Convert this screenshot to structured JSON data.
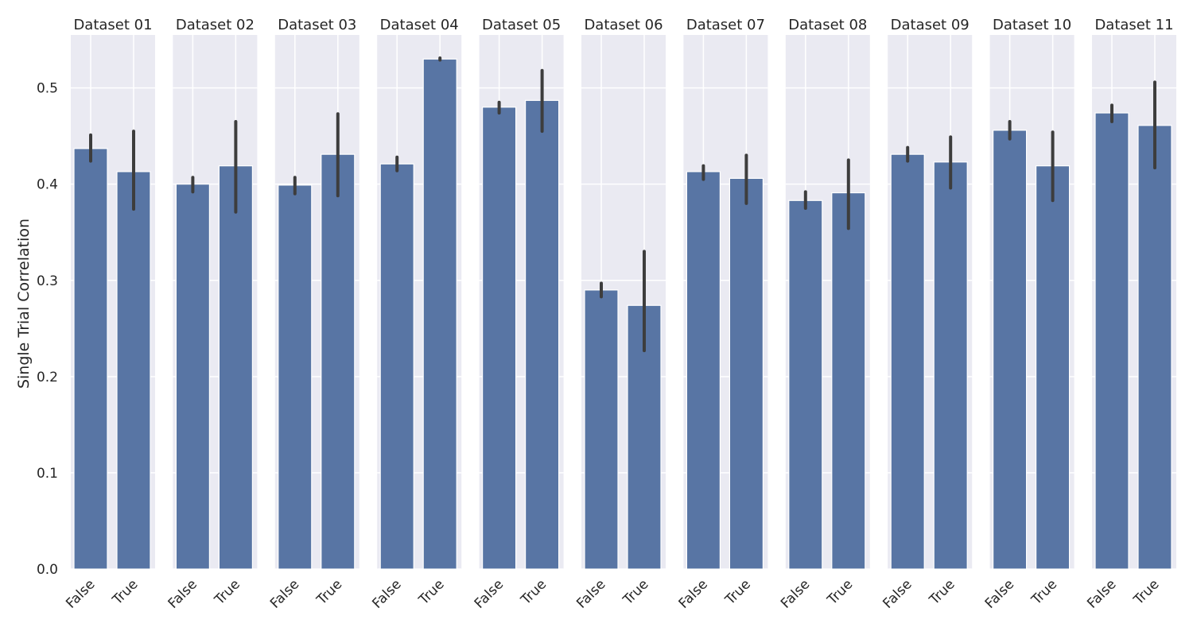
{
  "chart_data": {
    "type": "bar",
    "ylabel": "Single Trial Correlation",
    "ylim": [
      0,
      0.555
    ],
    "yticks": [
      "0.0",
      "0.1",
      "0.2",
      "0.3",
      "0.4",
      "0.5"
    ],
    "categories": [
      "False",
      "True"
    ],
    "bar_color": "#5875a4",
    "panel_bg": "#eaeaf2",
    "grid": true,
    "errorbar_color": "#3d3d3d",
    "panels": [
      {
        "title": "Dataset 01",
        "values": [
          0.437,
          0.413
        ],
        "ci": [
          [
            0.424,
            0.451
          ],
          [
            0.374,
            0.455
          ]
        ]
      },
      {
        "title": "Dataset 02",
        "values": [
          0.4,
          0.419
        ],
        "ci": [
          [
            0.392,
            0.407
          ],
          [
            0.371,
            0.465
          ]
        ]
      },
      {
        "title": "Dataset 03",
        "values": [
          0.399,
          0.431
        ],
        "ci": [
          [
            0.39,
            0.407
          ],
          [
            0.388,
            0.473
          ]
        ]
      },
      {
        "title": "Dataset 04",
        "values": [
          0.421,
          0.53
        ],
        "ci": [
          [
            0.414,
            0.428
          ],
          [
            0.529,
            0.531
          ]
        ]
      },
      {
        "title": "Dataset 05",
        "values": [
          0.48,
          0.487
        ],
        "ci": [
          [
            0.474,
            0.485
          ],
          [
            0.455,
            0.518
          ]
        ]
      },
      {
        "title": "Dataset 06",
        "values": [
          0.29,
          0.274
        ],
        "ci": [
          [
            0.283,
            0.297
          ],
          [
            0.227,
            0.33
          ]
        ]
      },
      {
        "title": "Dataset 07",
        "values": [
          0.413,
          0.406
        ],
        "ci": [
          [
            0.405,
            0.419
          ],
          [
            0.38,
            0.43
          ]
        ]
      },
      {
        "title": "Dataset 08",
        "values": [
          0.383,
          0.391
        ],
        "ci": [
          [
            0.375,
            0.392
          ],
          [
            0.354,
            0.425
          ]
        ]
      },
      {
        "title": "Dataset 09",
        "values": [
          0.431,
          0.423
        ],
        "ci": [
          [
            0.424,
            0.438
          ],
          [
            0.396,
            0.449
          ]
        ]
      },
      {
        "title": "Dataset 10",
        "values": [
          0.456,
          0.419
        ],
        "ci": [
          [
            0.447,
            0.465
          ],
          [
            0.383,
            0.454
          ]
        ]
      },
      {
        "title": "Dataset 11",
        "values": [
          0.474,
          0.461
        ],
        "ci": [
          [
            0.465,
            0.482
          ],
          [
            0.417,
            0.506
          ]
        ]
      }
    ]
  }
}
